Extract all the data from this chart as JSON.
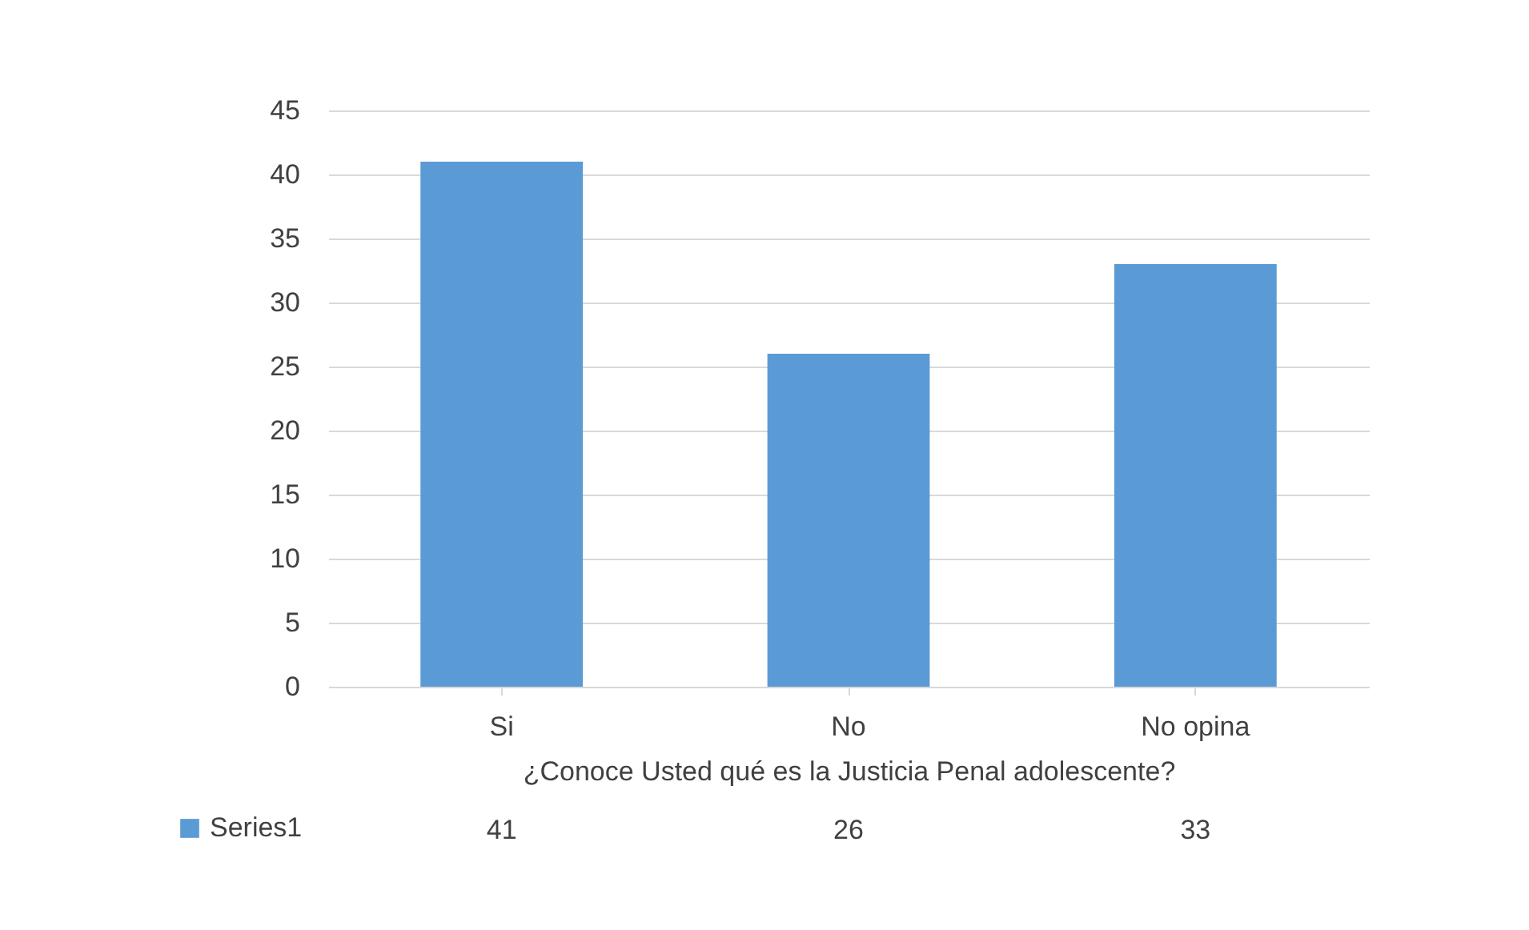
{
  "chart_data": {
    "type": "bar",
    "xlabel": "¿Conoce Usted qué es la Justicia Penal adolescente?",
    "categories": [
      "Si",
      "No",
      "No opina"
    ],
    "series": [
      {
        "name": "Series1",
        "color": "#5b9bd5",
        "values": [
          41,
          26,
          33
        ]
      }
    ],
    "ylim": [
      0,
      45
    ],
    "yticks": [
      0,
      5,
      10,
      15,
      20,
      25,
      30,
      35,
      40,
      45
    ],
    "grid": "y",
    "data_labels": true,
    "legend": "bottom left"
  }
}
